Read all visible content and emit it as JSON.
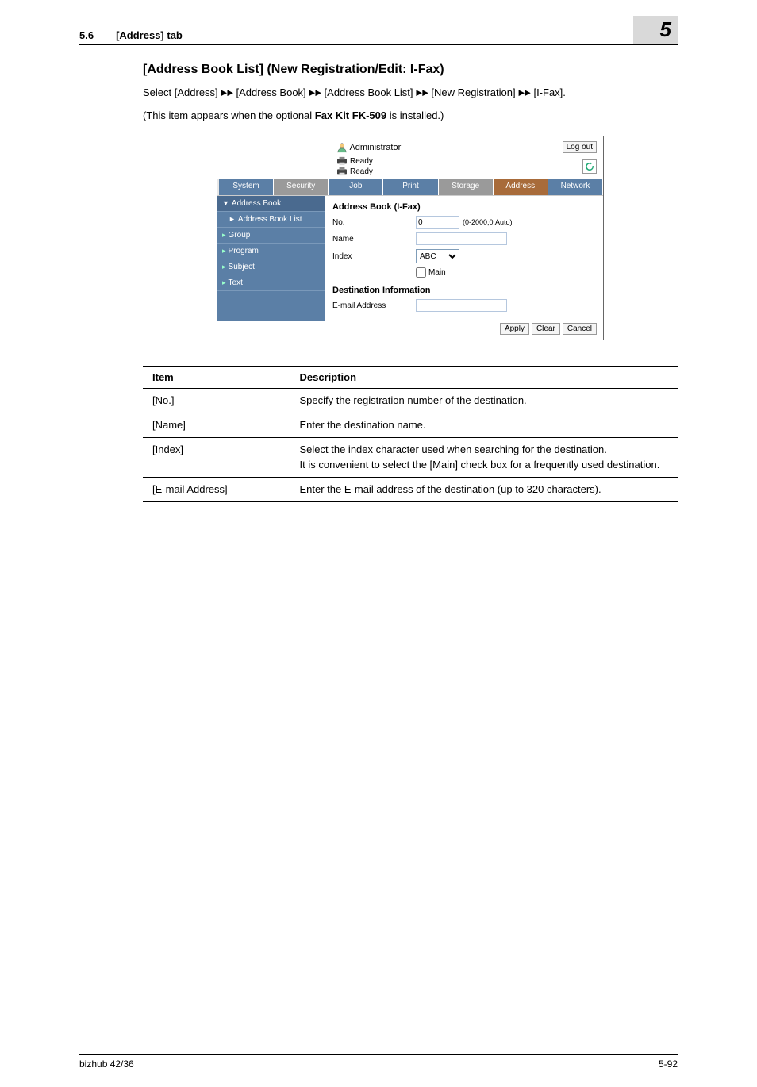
{
  "header": {
    "section_num": "5.6",
    "section_title": "[Address] tab",
    "chapter_num": "5"
  },
  "body": {
    "heading": "[Address Book List] (New Registration/Edit: I-Fax)",
    "crumb_parts": [
      "Select [Address] ",
      "►►",
      " [Address Book] ",
      "►►",
      " [Address Book List] ",
      "►►",
      " [New Registration] ",
      "►►",
      " [I-Fax]."
    ],
    "note_pre": "(This item appears when the optional ",
    "note_bold": "Fax Kit FK-509",
    "note_post": " is installed.)"
  },
  "screenshot": {
    "admin_label": "Administrator",
    "logout": "Log out",
    "ready": "Ready",
    "tabs": {
      "system": "System",
      "security": "Security",
      "job": "Job",
      "print": "Print",
      "storage": "Storage",
      "address": "Address",
      "network": "Network"
    },
    "sidebar": {
      "address_book": "Address Book",
      "address_book_list": "Address Book List",
      "group": "Group",
      "program": "Program",
      "subject": "Subject",
      "text": "Text"
    },
    "form": {
      "title": "Address Book (I-Fax)",
      "no_label": "No.",
      "no_value": "0",
      "no_hint": "(0-2000,0:Auto)",
      "name_label": "Name",
      "name_value": "",
      "index_label": "Index",
      "index_value": "ABC",
      "main_label": "Main",
      "dest_info": "Destination Information",
      "email_label": "E-mail Address",
      "email_value": "",
      "apply": "Apply",
      "clear": "Clear",
      "cancel": "Cancel"
    }
  },
  "table": {
    "h1": "Item",
    "h2": "Description",
    "rows": [
      {
        "item": "[No.]",
        "desc": "Specify the registration number of the destination."
      },
      {
        "item": "[Name]",
        "desc": "Enter the destination name."
      },
      {
        "item": "[Index]",
        "desc": "Select the index character used when searching for the destination.\nIt is convenient to select the [Main] check box for a frequently used destination."
      },
      {
        "item": "[E-mail Address]",
        "desc": "Enter the E-mail address of the destination (up to 320 characters)."
      }
    ]
  },
  "footer": {
    "model": "bizhub 42/36",
    "page": "5-92"
  },
  "colors": {
    "tab_blue": "#5b7fa6",
    "tab_grey": "#9a9a9a",
    "tab_brown": "#a86b3a",
    "chapter_bg": "#d9d9d9"
  }
}
